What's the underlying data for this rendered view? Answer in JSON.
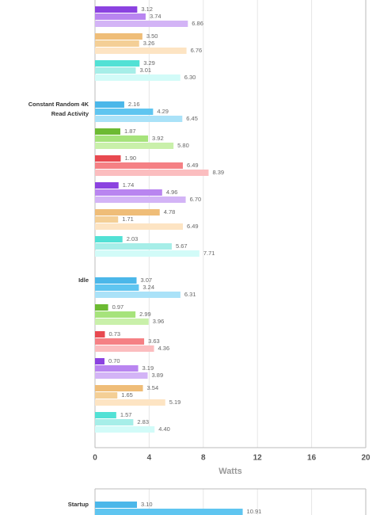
{
  "chart_data": [
    {
      "type": "bar",
      "xlabel": "Watts",
      "xlim": [
        0,
        20
      ],
      "xticks": [
        0,
        4,
        8,
        12,
        16,
        20
      ],
      "groups": [
        {
          "category": null,
          "bars": [
            {
              "colors": [
                "#8b42e0",
                "#b985f0",
                "#d3b4f6"
              ],
              "values": [
                3.12,
                3.74,
                6.86
              ],
              "value_labels": [
                "3.12",
                "3.74",
                "6.86"
              ]
            },
            {
              "colors": [
                "#efbd78",
                "#f4cf96",
                "#fde4c3"
              ],
              "values": [
                3.5,
                3.26,
                6.76
              ],
              "value_labels": [
                "3.50",
                "3.26",
                "6.76"
              ]
            },
            {
              "colors": [
                "#52e1d5",
                "#a6eee8",
                "#d2fbf8"
              ],
              "values": [
                3.29,
                3.01,
                6.3
              ],
              "value_labels": [
                "3.29",
                "3.01",
                "6.30"
              ]
            }
          ]
        },
        {
          "category": "Constant Random 4K Read Activity",
          "bars": [
            {
              "colors": [
                "#4bb7e9",
                "#5fc5f0",
                "#aae2f8"
              ],
              "values": [
                2.16,
                4.29,
                6.45
              ],
              "value_labels": [
                "2.16",
                "4.29",
                "6.45"
              ]
            },
            {
              "colors": [
                "#6cba32",
                "#a6e37b",
                "#c9f0aa"
              ],
              "values": [
                1.87,
                3.92,
                5.8
              ],
              "value_labels": [
                "1.87",
                "3.92",
                "5.80"
              ]
            },
            {
              "colors": [
                "#e84950",
                "#f58084",
                "#fbbdbf"
              ],
              "values": [
                1.9,
                6.49,
                8.39
              ],
              "value_labels": [
                "1.90",
                "6.49",
                "8.39"
              ]
            },
            {
              "colors": [
                "#8b42e0",
                "#b985f0",
                "#d3b4f6"
              ],
              "values": [
                1.74,
                4.96,
                6.7
              ],
              "value_labels": [
                "1.74",
                "4.96",
                "6.70"
              ]
            },
            {
              "colors": [
                "#efbd78",
                "#f4cf96",
                "#fde4c3"
              ],
              "values": [
                4.78,
                1.71,
                6.49
              ],
              "value_labels": [
                "4.78",
                "1.71",
                "6.49"
              ]
            },
            {
              "colors": [
                "#52e1d5",
                "#a6eee8",
                "#d2fbf8"
              ],
              "values": [
                2.03,
                5.67,
                7.71
              ],
              "value_labels": [
                "2.03",
                "5.67",
                "7.71"
              ]
            }
          ]
        },
        {
          "category": "Idle",
          "bars": [
            {
              "colors": [
                "#4bb7e9",
                "#5fc5f0",
                "#aae2f8"
              ],
              "values": [
                3.07,
                3.24,
                6.31
              ],
              "value_labels": [
                "3.07",
                "3.24",
                "6.31"
              ]
            },
            {
              "colors": [
                "#6cba32",
                "#a6e37b",
                "#c9f0aa"
              ],
              "values": [
                0.97,
                2.99,
                3.96
              ],
              "value_labels": [
                "0.97",
                "2.99",
                "3.96"
              ]
            },
            {
              "colors": [
                "#e84950",
                "#f58084",
                "#fbbdbf"
              ],
              "values": [
                0.73,
                3.63,
                4.36
              ],
              "value_labels": [
                "0.73",
                "3.63",
                "4.36"
              ]
            },
            {
              "colors": [
                "#8b42e0",
                "#b985f0",
                "#d3b4f6"
              ],
              "values": [
                0.7,
                3.19,
                3.89
              ],
              "value_labels": [
                "0.70",
                "3.19",
                "3.89"
              ]
            },
            {
              "colors": [
                "#efbd78",
                "#f4cf96",
                "#fde4c3"
              ],
              "values": [
                3.54,
                1.65,
                5.19
              ],
              "value_labels": [
                "3.54",
                "1.65",
                "5.19"
              ]
            },
            {
              "colors": [
                "#52e1d5",
                "#a6eee8",
                "#d2fbf8"
              ],
              "values": [
                1.57,
                2.83,
                4.4
              ],
              "value_labels": [
                "1.57",
                "2.83",
                "4.40"
              ]
            }
          ]
        }
      ]
    },
    {
      "type": "bar",
      "xlim": [
        0,
        20
      ],
      "groups": [
        {
          "category": "Startup",
          "bars": [
            {
              "colors": [
                "#4bb7e9",
                "#5fc5f0"
              ],
              "values": [
                3.1,
                10.91
              ],
              "value_labels": [
                "3.10",
                "10.91"
              ]
            }
          ]
        }
      ]
    }
  ]
}
